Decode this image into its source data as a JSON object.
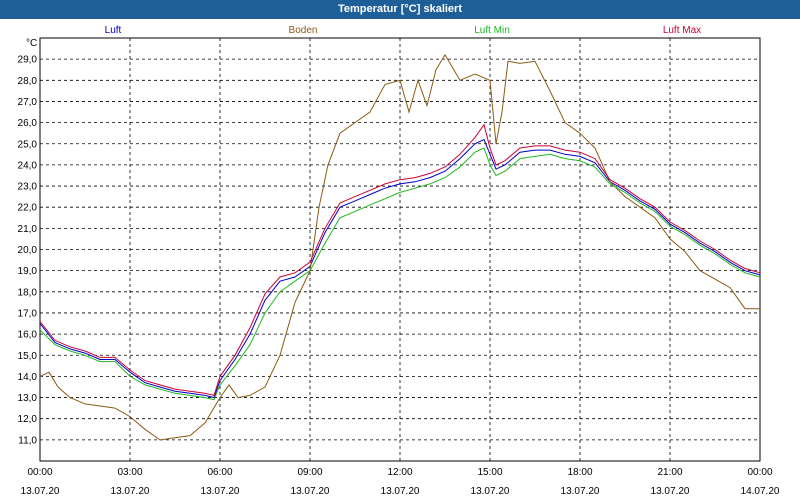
{
  "window": {
    "title": "Temperatur [°C] skaliert"
  },
  "chart_data": {
    "type": "line",
    "title": "Temperatur [°C] skaliert",
    "ylabel": "°C",
    "ylim": [
      10.0,
      30.0
    ],
    "xlim_hours": [
      0,
      24
    ],
    "grid": true,
    "y_ticks": [
      "11,0",
      "12,0",
      "13,0",
      "14,0",
      "15,0",
      "16,0",
      "17,0",
      "18,0",
      "19,0",
      "20,0",
      "21,0",
      "22,0",
      "23,0",
      "24,0",
      "25,0",
      "26,0",
      "27,0",
      "28,0",
      "29,0"
    ],
    "x_ticks": [
      {
        "time": "00:00",
        "date": "13.07.20"
      },
      {
        "time": "03:00",
        "date": "13.07.20"
      },
      {
        "time": "06:00",
        "date": "13.07.20"
      },
      {
        "time": "09:00",
        "date": "13.07.20"
      },
      {
        "time": "12:00",
        "date": "13.07.20"
      },
      {
        "time": "15:00",
        "date": "13.07.20"
      },
      {
        "time": "18:00",
        "date": "13.07.20"
      },
      {
        "time": "21:00",
        "date": "13.07.20"
      },
      {
        "time": "00:00",
        "date": "14.07.20"
      }
    ],
    "series": [
      {
        "name": "Luft",
        "color": "#0000cc",
        "x": [
          0,
          0.5,
          1,
          1.5,
          2,
          2.5,
          3,
          3.5,
          4,
          4.5,
          5,
          5.5,
          5.8,
          6,
          6.5,
          7,
          7.5,
          8,
          8.5,
          9,
          9.5,
          10,
          10.5,
          11,
          11.5,
          12,
          12.5,
          13,
          13.5,
          14,
          14.5,
          14.8,
          15,
          15.2,
          15.5,
          16,
          16.5,
          17,
          17.5,
          18,
          18.5,
          19,
          19.5,
          20,
          20.5,
          21,
          21.5,
          22,
          22.5,
          23,
          23.5,
          24
        ],
        "values": [
          16.5,
          15.6,
          15.3,
          15.1,
          14.8,
          14.8,
          14.2,
          13.7,
          13.5,
          13.3,
          13.2,
          13.1,
          13.0,
          13.8,
          14.8,
          16.0,
          17.6,
          18.5,
          18.7,
          19.2,
          20.8,
          22.0,
          22.3,
          22.6,
          22.9,
          23.1,
          23.2,
          23.4,
          23.7,
          24.3,
          25.0,
          25.2,
          24.5,
          23.8,
          24.0,
          24.6,
          24.7,
          24.7,
          24.5,
          24.4,
          24.1,
          23.2,
          22.8,
          22.3,
          21.9,
          21.2,
          20.8,
          20.3,
          19.9,
          19.4,
          19.0,
          18.8
        ]
      },
      {
        "name": "Boden",
        "color": "#8b5a14",
        "x": [
          0,
          0.3,
          0.6,
          1,
          1.5,
          2,
          2.5,
          3,
          3.5,
          4,
          4.5,
          5,
          5.5,
          6,
          6.3,
          6.6,
          7,
          7.5,
          8,
          8.5,
          9,
          9.3,
          9.6,
          10,
          10.5,
          11,
          11.5,
          12,
          12.3,
          12.6,
          12.9,
          13.2,
          13.5,
          14,
          14.5,
          15,
          15.2,
          15.4,
          15.6,
          16,
          16.5,
          17,
          17.5,
          18,
          18.5,
          19,
          19.5,
          20,
          20.5,
          21,
          21.5,
          22,
          22.5,
          23,
          23.5,
          24
        ],
        "values": [
          14.0,
          14.2,
          13.5,
          13.0,
          12.7,
          12.6,
          12.5,
          12.1,
          11.5,
          11.0,
          11.1,
          11.2,
          11.8,
          13.0,
          13.6,
          13.0,
          13.1,
          13.5,
          15.0,
          17.5,
          19.0,
          22.0,
          24.0,
          25.5,
          26.0,
          26.5,
          27.8,
          28.0,
          26.5,
          28.0,
          26.8,
          28.5,
          29.2,
          28.0,
          28.3,
          28.0,
          25.0,
          26.5,
          28.9,
          28.8,
          28.9,
          27.5,
          26.0,
          25.5,
          24.8,
          23.2,
          22.5,
          22.0,
          21.5,
          20.5,
          19.9,
          19.0,
          18.6,
          18.2,
          17.2,
          17.2
        ]
      },
      {
        "name": "Luft Min",
        "color": "#1fb81f",
        "x": [
          0,
          0.5,
          1,
          1.5,
          2,
          2.5,
          3,
          3.5,
          4,
          4.5,
          5,
          5.5,
          5.8,
          6,
          6.5,
          7,
          7.5,
          8,
          8.5,
          9,
          9.5,
          10,
          10.5,
          11,
          11.5,
          12,
          12.5,
          13,
          13.5,
          14,
          14.5,
          14.8,
          15,
          15.2,
          15.5,
          16,
          16.5,
          17,
          17.5,
          18,
          18.5,
          19,
          19.5,
          20,
          20.5,
          21,
          21.5,
          22,
          22.5,
          23,
          23.5,
          24
        ],
        "values": [
          16.2,
          15.5,
          15.2,
          15.0,
          14.7,
          14.7,
          14.0,
          13.6,
          13.4,
          13.2,
          13.1,
          13.0,
          12.9,
          13.6,
          14.5,
          15.5,
          17.0,
          18.0,
          18.5,
          19.0,
          20.3,
          21.5,
          21.8,
          22.1,
          22.4,
          22.7,
          22.9,
          23.1,
          23.4,
          23.9,
          24.6,
          24.8,
          24.0,
          23.5,
          23.7,
          24.3,
          24.4,
          24.5,
          24.3,
          24.2,
          23.9,
          23.1,
          22.7,
          22.2,
          21.8,
          21.1,
          20.7,
          20.2,
          19.8,
          19.3,
          18.9,
          18.7
        ]
      },
      {
        "name": "Luft Max",
        "color": "#cc0033",
        "x": [
          0,
          0.5,
          1,
          1.5,
          2,
          2.5,
          3,
          3.5,
          4,
          4.5,
          5,
          5.5,
          5.8,
          6,
          6.5,
          7,
          7.5,
          8,
          8.5,
          9,
          9.5,
          10,
          10.5,
          11,
          11.5,
          12,
          12.5,
          13,
          13.5,
          14,
          14.5,
          14.8,
          15,
          15.2,
          15.5,
          16,
          16.5,
          17,
          17.5,
          18,
          18.5,
          19,
          19.5,
          20,
          20.5,
          21,
          21.5,
          22,
          22.5,
          23,
          23.5,
          24
        ],
        "values": [
          16.6,
          15.7,
          15.4,
          15.2,
          14.9,
          14.9,
          14.3,
          13.8,
          13.6,
          13.4,
          13.3,
          13.2,
          13.1,
          14.0,
          15.0,
          16.3,
          17.9,
          18.7,
          18.9,
          19.4,
          21.0,
          22.2,
          22.5,
          22.8,
          23.1,
          23.3,
          23.4,
          23.6,
          23.9,
          24.5,
          25.3,
          25.9,
          24.8,
          24.0,
          24.2,
          24.8,
          24.9,
          24.9,
          24.7,
          24.6,
          24.3,
          23.3,
          22.9,
          22.4,
          22.0,
          21.3,
          20.9,
          20.4,
          20.0,
          19.5,
          19.1,
          18.9
        ]
      }
    ]
  }
}
